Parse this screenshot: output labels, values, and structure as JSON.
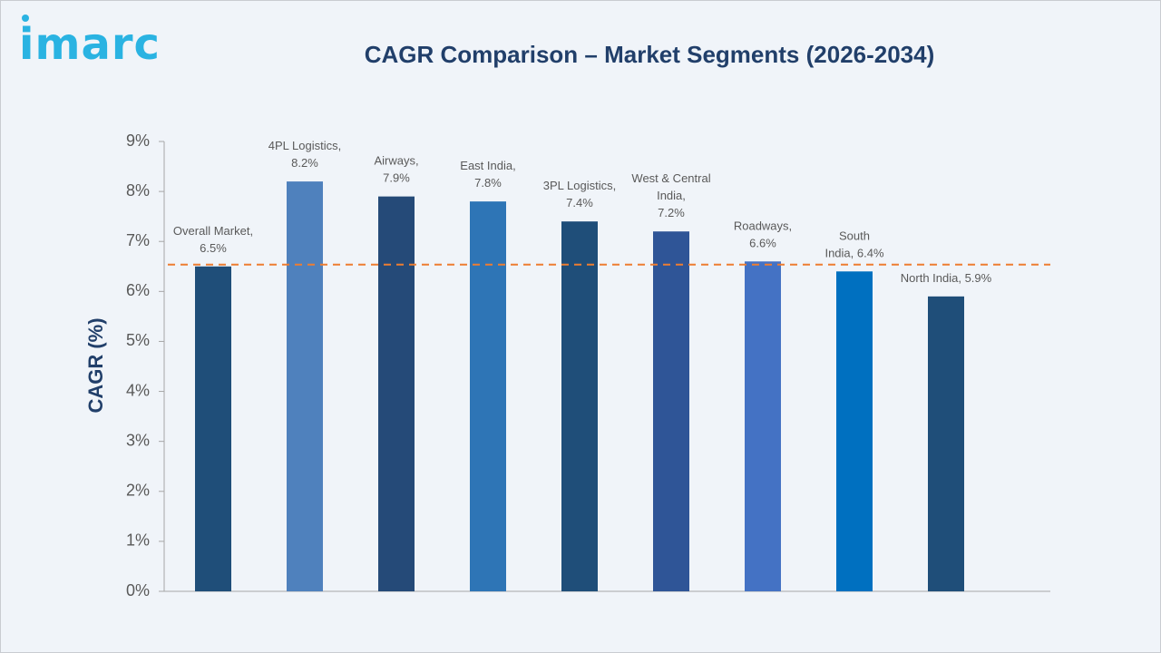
{
  "brand": {
    "logo_text": "imarc",
    "color": "#2ab3e2"
  },
  "chart_data": {
    "type": "bar",
    "title": "CAGR Comparison – Market Segments (2026-2034)",
    "xlabel": "",
    "ylabel": "CAGR (%)",
    "ylim": [
      0,
      9
    ],
    "y_ticks": [
      "0%",
      "1%",
      "2%",
      "3%",
      "4%",
      "5%",
      "6%",
      "7%",
      "8%",
      "9%"
    ],
    "categories": [
      "Overall Market",
      "4PL Logistics",
      "Airways",
      "East India",
      "3PL Logistics",
      "West & Central India",
      "Roadways",
      "South India",
      "North India"
    ],
    "values": [
      6.5,
      8.2,
      7.9,
      7.8,
      7.4,
      7.2,
      6.6,
      6.4,
      5.9
    ],
    "data_labels": [
      [
        "Overall Market,",
        "6.5%"
      ],
      [
        "4PL Logistics,",
        "8.2%"
      ],
      [
        "Airways,",
        "7.9%"
      ],
      [
        "East India,",
        "7.8%"
      ],
      [
        "3PL Logistics,",
        "7.4%"
      ],
      [
        "West & Central",
        "India,",
        "7.2%"
      ],
      [
        "Roadways,",
        "6.6%"
      ],
      [
        "South",
        "India, 6.4%"
      ],
      [
        "North India, 5.9%"
      ]
    ],
    "bar_colors": [
      "#1f4e79",
      "#4f81bd",
      "#254a78",
      "#2e75b6",
      "#1f4e79",
      "#2f5597",
      "#4472c4",
      "#0070c0",
      "#1f4e79"
    ],
    "reference_line": {
      "value": 6.5,
      "color": "#ed7d31",
      "style": "dashed"
    },
    "grid": false,
    "legend": "none"
  }
}
